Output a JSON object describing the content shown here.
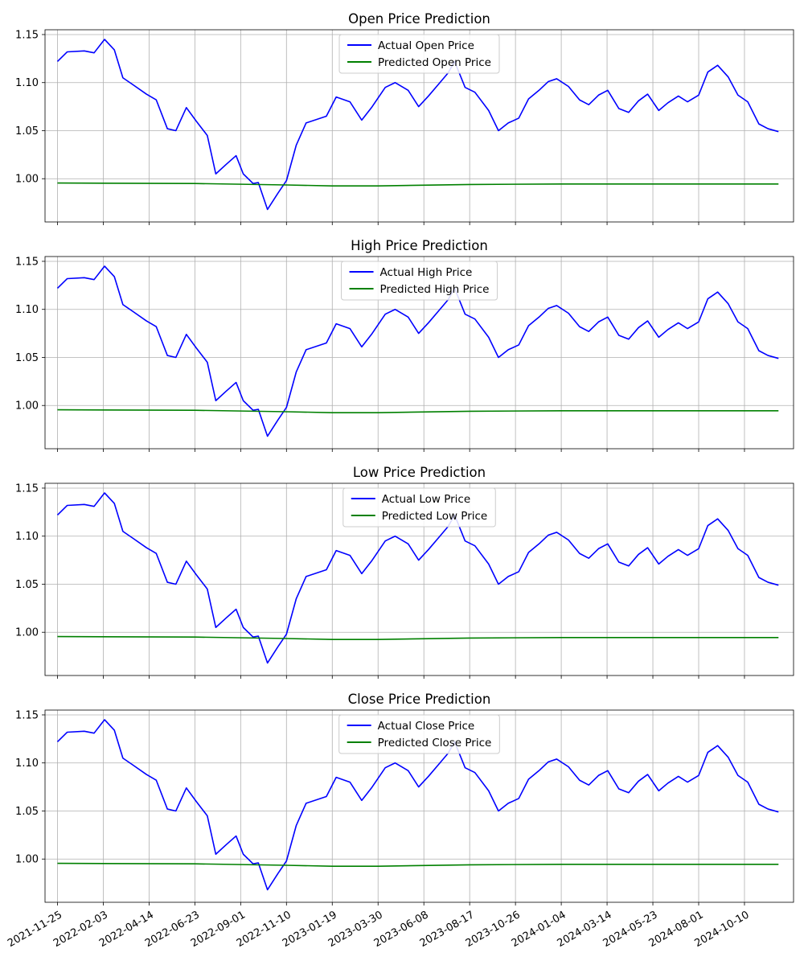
{
  "figure": {
    "background": "#ffffff"
  },
  "colors": {
    "actual": "#0000ff",
    "predicted": "#008000",
    "grid": "#b0b0b0",
    "axes": "#000000"
  },
  "x_tick_labels": [
    "2021-11-25",
    "2022-02-03",
    "2022-04-14",
    "2022-06-23",
    "2022-09-01",
    "2022-11-10",
    "2023-01-19",
    "2023-03-30",
    "2023-06-08",
    "2023-08-17",
    "2023-10-26",
    "2024-01-04",
    "2024-03-14",
    "2024-05-23",
    "2024-08-01",
    "2024-10-10"
  ],
  "chart_data": [
    {
      "type": "line",
      "title": "Open Price Prediction",
      "xlabel": "",
      "ylabel": "",
      "x_range": [
        "2021-11-25",
        "2024-12-05"
      ],
      "ylim": [
        0.955,
        1.155
      ],
      "yticks": [
        1.0,
        1.05,
        1.1,
        1.15
      ],
      "ytick_labels": [
        "1.00",
        "1.05",
        "1.10",
        "1.15"
      ],
      "grid": true,
      "legend_position": "upper center",
      "show_xtick_labels": false,
      "series": [
        {
          "name": "Actual Open Price",
          "color": "#0000ff",
          "x": [
            "2021-11-25",
            "2021-12-10",
            "2022-01-05",
            "2022-01-20",
            "2022-02-05",
            "2022-02-20",
            "2022-03-05",
            "2022-03-20",
            "2022-04-10",
            "2022-04-25",
            "2022-05-12",
            "2022-05-25",
            "2022-06-10",
            "2022-06-25",
            "2022-07-12",
            "2022-07-25",
            "2022-08-10",
            "2022-08-25",
            "2022-09-05",
            "2022-09-20",
            "2022-09-28",
            "2022-10-12",
            "2022-10-28",
            "2022-11-10",
            "2022-11-25",
            "2022-12-10",
            "2023-01-10",
            "2023-01-25",
            "2023-02-15",
            "2023-03-05",
            "2023-03-20",
            "2023-04-10",
            "2023-04-25",
            "2023-05-15",
            "2023-05-31",
            "2023-06-15",
            "2023-06-30",
            "2023-07-15",
            "2023-07-25",
            "2023-08-10",
            "2023-08-25",
            "2023-09-15",
            "2023-09-30",
            "2023-10-15",
            "2023-10-31",
            "2023-11-15",
            "2023-12-01",
            "2023-12-15",
            "2023-12-28",
            "2024-01-15",
            "2024-02-01",
            "2024-02-15",
            "2024-03-01",
            "2024-03-15",
            "2024-04-01",
            "2024-04-16",
            "2024-05-01",
            "2024-05-15",
            "2024-06-01",
            "2024-06-15",
            "2024-07-01",
            "2024-07-15",
            "2024-08-01",
            "2024-08-15",
            "2024-08-30",
            "2024-09-15",
            "2024-09-30",
            "2024-10-15",
            "2024-11-01",
            "2024-11-15",
            "2024-12-01"
          ],
          "y": [
            1.122,
            1.132,
            1.133,
            1.131,
            1.145,
            1.134,
            1.105,
            1.098,
            1.088,
            1.082,
            1.052,
            1.05,
            1.074,
            1.06,
            1.045,
            1.005,
            1.015,
            1.024,
            1.005,
            0.995,
            0.996,
            0.968,
            0.985,
            0.998,
            1.035,
            1.058,
            1.065,
            1.085,
            1.08,
            1.061,
            1.074,
            1.095,
            1.1,
            1.092,
            1.075,
            1.086,
            1.098,
            1.11,
            1.122,
            1.095,
            1.09,
            1.071,
            1.05,
            1.058,
            1.063,
            1.083,
            1.092,
            1.101,
            1.104,
            1.096,
            1.082,
            1.077,
            1.087,
            1.092,
            1.073,
            1.069,
            1.081,
            1.088,
            1.071,
            1.079,
            1.086,
            1.08,
            1.087,
            1.111,
            1.118,
            1.106,
            1.087,
            1.08,
            1.057,
            1.052,
            1.049
          ]
        },
        {
          "name": "Predicted Open Price",
          "color": "#008000",
          "x": [
            "2021-11-25",
            "2022-06-23",
            "2022-11-10",
            "2023-01-19",
            "2023-03-30",
            "2023-08-17",
            "2024-01-04",
            "2024-08-01",
            "2024-12-01"
          ],
          "y": [
            0.9955,
            0.995,
            0.9935,
            0.9925,
            0.9925,
            0.994,
            0.9945,
            0.9945,
            0.9945
          ]
        }
      ]
    },
    {
      "type": "line",
      "title": "High Price Prediction",
      "xlabel": "",
      "ylabel": "",
      "x_range": [
        "2021-11-25",
        "2024-12-05"
      ],
      "ylim": [
        0.955,
        1.155
      ],
      "yticks": [
        1.0,
        1.05,
        1.1,
        1.15
      ],
      "ytick_labels": [
        "1.00",
        "1.05",
        "1.10",
        "1.15"
      ],
      "grid": true,
      "legend_position": "upper center",
      "show_xtick_labels": false,
      "series": [
        {
          "name": "Actual High Price",
          "color": "#0000ff",
          "x": [
            "2021-11-25",
            "2021-12-10",
            "2022-01-05",
            "2022-01-20",
            "2022-02-05",
            "2022-02-20",
            "2022-03-05",
            "2022-03-20",
            "2022-04-10",
            "2022-04-25",
            "2022-05-12",
            "2022-05-25",
            "2022-06-10",
            "2022-06-25",
            "2022-07-12",
            "2022-07-25",
            "2022-08-10",
            "2022-08-25",
            "2022-09-05",
            "2022-09-20",
            "2022-09-28",
            "2022-10-12",
            "2022-10-28",
            "2022-11-10",
            "2022-11-25",
            "2022-12-10",
            "2023-01-10",
            "2023-01-25",
            "2023-02-15",
            "2023-03-05",
            "2023-03-20",
            "2023-04-10",
            "2023-04-25",
            "2023-05-15",
            "2023-05-31",
            "2023-06-15",
            "2023-06-30",
            "2023-07-15",
            "2023-07-25",
            "2023-08-10",
            "2023-08-25",
            "2023-09-15",
            "2023-09-30",
            "2023-10-15",
            "2023-10-31",
            "2023-11-15",
            "2023-12-01",
            "2023-12-15",
            "2023-12-28",
            "2024-01-15",
            "2024-02-01",
            "2024-02-15",
            "2024-03-01",
            "2024-03-15",
            "2024-04-01",
            "2024-04-16",
            "2024-05-01",
            "2024-05-15",
            "2024-06-01",
            "2024-06-15",
            "2024-07-01",
            "2024-07-15",
            "2024-08-01",
            "2024-08-15",
            "2024-08-30",
            "2024-09-15",
            "2024-09-30",
            "2024-10-15",
            "2024-11-01",
            "2024-11-15",
            "2024-12-01"
          ],
          "y": [
            1.122,
            1.132,
            1.133,
            1.131,
            1.145,
            1.134,
            1.105,
            1.098,
            1.088,
            1.082,
            1.052,
            1.05,
            1.074,
            1.06,
            1.045,
            1.005,
            1.015,
            1.024,
            1.005,
            0.995,
            0.996,
            0.968,
            0.985,
            0.998,
            1.035,
            1.058,
            1.065,
            1.085,
            1.08,
            1.061,
            1.074,
            1.095,
            1.1,
            1.092,
            1.075,
            1.086,
            1.098,
            1.11,
            1.122,
            1.095,
            1.09,
            1.071,
            1.05,
            1.058,
            1.063,
            1.083,
            1.092,
            1.101,
            1.104,
            1.096,
            1.082,
            1.077,
            1.087,
            1.092,
            1.073,
            1.069,
            1.081,
            1.088,
            1.071,
            1.079,
            1.086,
            1.08,
            1.087,
            1.111,
            1.118,
            1.106,
            1.087,
            1.08,
            1.057,
            1.052,
            1.049
          ]
        },
        {
          "name": "Predicted High Price",
          "color": "#008000",
          "x": [
            "2021-11-25",
            "2022-06-23",
            "2022-11-10",
            "2023-01-19",
            "2023-03-30",
            "2023-08-17",
            "2024-01-04",
            "2024-08-01",
            "2024-12-01"
          ],
          "y": [
            0.9955,
            0.995,
            0.9935,
            0.9925,
            0.9925,
            0.994,
            0.9945,
            0.9945,
            0.9945
          ]
        }
      ]
    },
    {
      "type": "line",
      "title": "Low Price Prediction",
      "xlabel": "",
      "ylabel": "",
      "x_range": [
        "2021-11-25",
        "2024-12-05"
      ],
      "ylim": [
        0.955,
        1.155
      ],
      "yticks": [
        1.0,
        1.05,
        1.1,
        1.15
      ],
      "ytick_labels": [
        "1.00",
        "1.05",
        "1.10",
        "1.15"
      ],
      "grid": true,
      "legend_position": "upper center",
      "show_xtick_labels": false,
      "series": [
        {
          "name": "Actual Low Price",
          "color": "#0000ff",
          "x": [
            "2021-11-25",
            "2021-12-10",
            "2022-01-05",
            "2022-01-20",
            "2022-02-05",
            "2022-02-20",
            "2022-03-05",
            "2022-03-20",
            "2022-04-10",
            "2022-04-25",
            "2022-05-12",
            "2022-05-25",
            "2022-06-10",
            "2022-06-25",
            "2022-07-12",
            "2022-07-25",
            "2022-08-10",
            "2022-08-25",
            "2022-09-05",
            "2022-09-20",
            "2022-09-28",
            "2022-10-12",
            "2022-10-28",
            "2022-11-10",
            "2022-11-25",
            "2022-12-10",
            "2023-01-10",
            "2023-01-25",
            "2023-02-15",
            "2023-03-05",
            "2023-03-20",
            "2023-04-10",
            "2023-04-25",
            "2023-05-15",
            "2023-05-31",
            "2023-06-15",
            "2023-06-30",
            "2023-07-15",
            "2023-07-25",
            "2023-08-10",
            "2023-08-25",
            "2023-09-15",
            "2023-09-30",
            "2023-10-15",
            "2023-10-31",
            "2023-11-15",
            "2023-12-01",
            "2023-12-15",
            "2023-12-28",
            "2024-01-15",
            "2024-02-01",
            "2024-02-15",
            "2024-03-01",
            "2024-03-15",
            "2024-04-01",
            "2024-04-16",
            "2024-05-01",
            "2024-05-15",
            "2024-06-01",
            "2024-06-15",
            "2024-07-01",
            "2024-07-15",
            "2024-08-01",
            "2024-08-15",
            "2024-08-30",
            "2024-09-15",
            "2024-09-30",
            "2024-10-15",
            "2024-11-01",
            "2024-11-15",
            "2024-12-01"
          ],
          "y": [
            1.122,
            1.132,
            1.133,
            1.131,
            1.145,
            1.134,
            1.105,
            1.098,
            1.088,
            1.082,
            1.052,
            1.05,
            1.074,
            1.06,
            1.045,
            1.005,
            1.015,
            1.024,
            1.005,
            0.995,
            0.996,
            0.968,
            0.985,
            0.998,
            1.035,
            1.058,
            1.065,
            1.085,
            1.08,
            1.061,
            1.074,
            1.095,
            1.1,
            1.092,
            1.075,
            1.086,
            1.098,
            1.11,
            1.122,
            1.095,
            1.09,
            1.071,
            1.05,
            1.058,
            1.063,
            1.083,
            1.092,
            1.101,
            1.104,
            1.096,
            1.082,
            1.077,
            1.087,
            1.092,
            1.073,
            1.069,
            1.081,
            1.088,
            1.071,
            1.079,
            1.086,
            1.08,
            1.087,
            1.111,
            1.118,
            1.106,
            1.087,
            1.08,
            1.057,
            1.052,
            1.049
          ]
        },
        {
          "name": "Predicted Low Price",
          "color": "#008000",
          "x": [
            "2021-11-25",
            "2022-06-23",
            "2022-11-10",
            "2023-01-19",
            "2023-03-30",
            "2023-08-17",
            "2024-01-04",
            "2024-08-01",
            "2024-12-01"
          ],
          "y": [
            0.9955,
            0.995,
            0.9935,
            0.9925,
            0.9925,
            0.994,
            0.9945,
            0.9945,
            0.9945
          ]
        }
      ]
    },
    {
      "type": "line",
      "title": "Close Price Prediction",
      "xlabel": "",
      "ylabel": "",
      "x_range": [
        "2021-11-25",
        "2024-12-05"
      ],
      "ylim": [
        0.955,
        1.155
      ],
      "yticks": [
        1.0,
        1.05,
        1.1,
        1.15
      ],
      "ytick_labels": [
        "1.00",
        "1.05",
        "1.10",
        "1.15"
      ],
      "grid": true,
      "legend_position": "upper center",
      "show_xtick_labels": true,
      "series": [
        {
          "name": "Actual Close Price",
          "color": "#0000ff",
          "x": [
            "2021-11-25",
            "2021-12-10",
            "2022-01-05",
            "2022-01-20",
            "2022-02-05",
            "2022-02-20",
            "2022-03-05",
            "2022-03-20",
            "2022-04-10",
            "2022-04-25",
            "2022-05-12",
            "2022-05-25",
            "2022-06-10",
            "2022-06-25",
            "2022-07-12",
            "2022-07-25",
            "2022-08-10",
            "2022-08-25",
            "2022-09-05",
            "2022-09-20",
            "2022-09-28",
            "2022-10-12",
            "2022-10-28",
            "2022-11-10",
            "2022-11-25",
            "2022-12-10",
            "2023-01-10",
            "2023-01-25",
            "2023-02-15",
            "2023-03-05",
            "2023-03-20",
            "2023-04-10",
            "2023-04-25",
            "2023-05-15",
            "2023-05-31",
            "2023-06-15",
            "2023-06-30",
            "2023-07-15",
            "2023-07-25",
            "2023-08-10",
            "2023-08-25",
            "2023-09-15",
            "2023-09-30",
            "2023-10-15",
            "2023-10-31",
            "2023-11-15",
            "2023-12-01",
            "2023-12-15",
            "2023-12-28",
            "2024-01-15",
            "2024-02-01",
            "2024-02-15",
            "2024-03-01",
            "2024-03-15",
            "2024-04-01",
            "2024-04-16",
            "2024-05-01",
            "2024-05-15",
            "2024-06-01",
            "2024-06-15",
            "2024-07-01",
            "2024-07-15",
            "2024-08-01",
            "2024-08-15",
            "2024-08-30",
            "2024-09-15",
            "2024-09-30",
            "2024-10-15",
            "2024-11-01",
            "2024-11-15",
            "2024-12-01"
          ],
          "y": [
            1.122,
            1.132,
            1.133,
            1.131,
            1.145,
            1.134,
            1.105,
            1.098,
            1.088,
            1.082,
            1.052,
            1.05,
            1.074,
            1.06,
            1.045,
            1.005,
            1.015,
            1.024,
            1.005,
            0.995,
            0.996,
            0.968,
            0.985,
            0.998,
            1.035,
            1.058,
            1.065,
            1.085,
            1.08,
            1.061,
            1.074,
            1.095,
            1.1,
            1.092,
            1.075,
            1.086,
            1.098,
            1.11,
            1.122,
            1.095,
            1.09,
            1.071,
            1.05,
            1.058,
            1.063,
            1.083,
            1.092,
            1.101,
            1.104,
            1.096,
            1.082,
            1.077,
            1.087,
            1.092,
            1.073,
            1.069,
            1.081,
            1.088,
            1.071,
            1.079,
            1.086,
            1.08,
            1.087,
            1.111,
            1.118,
            1.106,
            1.087,
            1.08,
            1.057,
            1.052,
            1.049
          ]
        },
        {
          "name": "Predicted Close Price",
          "color": "#008000",
          "x": [
            "2021-11-25",
            "2022-06-23",
            "2022-11-10",
            "2023-01-19",
            "2023-03-30",
            "2023-08-17",
            "2024-01-04",
            "2024-08-01",
            "2024-12-01"
          ],
          "y": [
            0.9955,
            0.995,
            0.9935,
            0.9925,
            0.9925,
            0.994,
            0.9945,
            0.9945,
            0.9945
          ]
        }
      ]
    }
  ]
}
